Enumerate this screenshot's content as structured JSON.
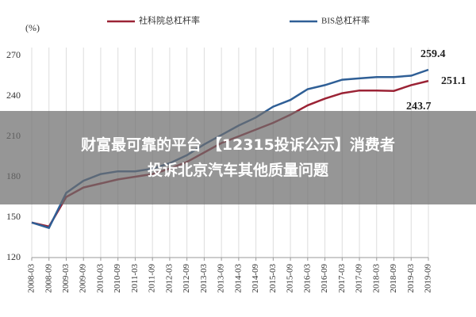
{
  "chart_data": {
    "type": "line",
    "unit_label": "(%)",
    "x": [
      "2008-03",
      "2008-09",
      "2009-03",
      "2009-09",
      "2010-03",
      "2010-09",
      "2011-03",
      "2011-09",
      "2012-03",
      "2012-09",
      "2013-03",
      "2013-09",
      "2014-03",
      "2014-09",
      "2015-03",
      "2015-09",
      "2016-03",
      "2016-09",
      "2017-03",
      "2017-09",
      "2018-03",
      "2018-09",
      "2019-03",
      "2019-09"
    ],
    "series": [
      {
        "name": "社科院总杠杆率",
        "color": "#9b2335",
        "values": [
          146,
          143,
          165,
          172,
          175,
          178,
          180,
          182,
          186,
          191,
          198,
          205,
          210,
          215,
          220,
          226,
          233,
          238,
          242,
          244,
          244,
          243.7,
          248,
          251.1
        ]
      },
      {
        "name": "BIS总杠杆率",
        "color": "#2f5f96",
        "values": [
          146,
          142,
          168,
          177,
          182,
          184,
          184,
          186,
          190,
          196,
          204,
          211,
          218,
          224,
          232,
          237,
          245,
          248,
          252,
          253,
          254,
          254,
          255,
          259.4
        ]
      }
    ],
    "annotations": [
      "259.4",
      "251.1",
      "243.7"
    ],
    "ylim": [
      120,
      270
    ],
    "yticks": [
      120,
      150,
      180,
      210,
      240,
      270
    ],
    "grid": true
  },
  "overlay": {
    "lines": [
      "财富最可靠的平台 【12315投诉公示】消费者",
      "投诉北京汽车其他质量问题"
    ]
  }
}
